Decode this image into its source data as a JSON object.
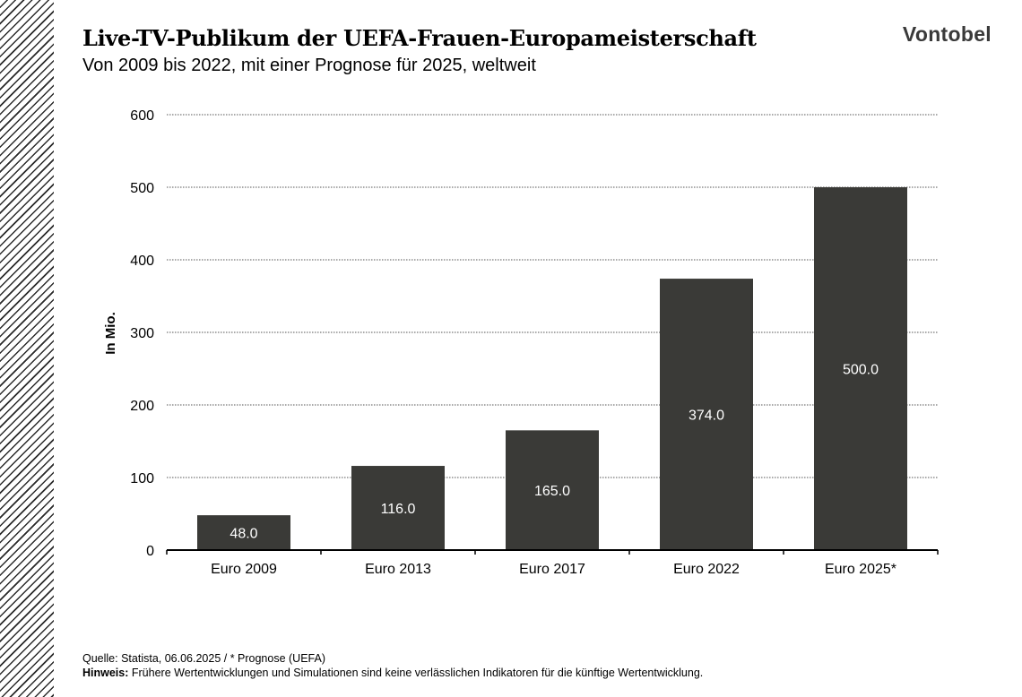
{
  "brand": "Vontobel",
  "title": "Live-TV-Publikum der UEFA-Frauen-Europameisterschaft",
  "subtitle": "Von 2009 bis 2022, mit einer Prognose für 2025, weltweit",
  "footer": {
    "source": "Quelle: Statista, 06.06.2025 / * Prognose (UEFA)",
    "note_label": "Hinweis:",
    "note_text": " Frühere Wertentwicklungen und Simulationen sind keine verlässlichen Indikatoren für die künftige Wertentwicklung."
  },
  "colors": {
    "bar": "#3a3a37",
    "bar_label": "#ffffff",
    "grid": "#555555",
    "axis": "#000000"
  },
  "chart_data": {
    "type": "bar",
    "categories": [
      "Euro 2009",
      "Euro 2013",
      "Euro 2017",
      "Euro 2022",
      "Euro 2025*"
    ],
    "values": [
      48.0,
      116.0,
      165.0,
      374.0,
      500.0
    ],
    "value_labels": [
      "48.0",
      "116.0",
      "165.0",
      "374.0",
      "500.0"
    ],
    "ylabel": "In Mio.",
    "ylim": [
      0,
      600
    ],
    "yticks": [
      0,
      100,
      200,
      300,
      400,
      500,
      600
    ],
    "grid": true,
    "grid_style": "dotted"
  }
}
